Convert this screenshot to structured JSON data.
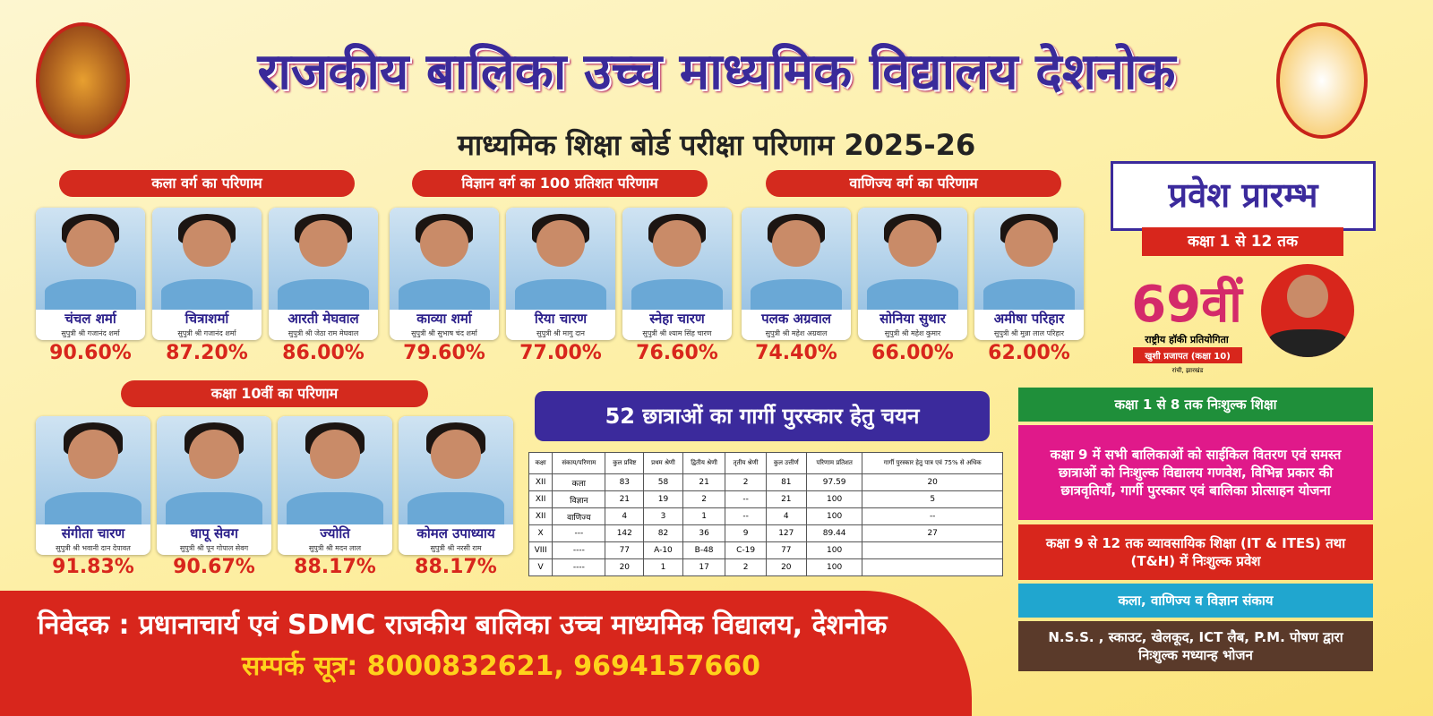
{
  "header": {
    "title": "राजकीय बालिका उच्च माध्यमिक विद्यालय देशनोक",
    "subtitle": "माध्यमिक शिक्षा बोर्ड परीक्षा परिणाम 2025-26"
  },
  "sections": [
    {
      "heading": "कला वर्ग का  परिणाम",
      "students": [
        {
          "name": "चंचल शर्मा",
          "parent": "सुपुत्री श्री गजानंद शर्मा",
          "percent": "90.60%"
        },
        {
          "name": "चित्राशर्मा",
          "parent": "सुपुत्री श्री गजानंद शर्मा",
          "percent": "87.20%"
        },
        {
          "name": "आरती मेघवाल",
          "parent": "सुपुत्री श्री जेठा राम मेघवाल",
          "percent": "86.00%"
        }
      ]
    },
    {
      "heading": "विज्ञान वर्ग का 100 प्रतिशत परिणाम",
      "students": [
        {
          "name": "काव्या शर्मा",
          "parent": "सुपुत्री श्री सुभाष चंद शर्मा",
          "percent": "79.60%"
        },
        {
          "name": "रिया चारण",
          "parent": "सुपुत्री श्री मागु दान",
          "percent": "77.00%"
        },
        {
          "name": "स्नेहा चारण",
          "parent": "सुपुत्री श्री श्याम सिंह चारण",
          "percent": "76.60%"
        }
      ]
    },
    {
      "heading": "वाणिज्य वर्ग का परिणाम",
      "students": [
        {
          "name": "पलक अग्रवाल",
          "parent": "सुपुत्री श्री महेश अग्रवाल",
          "percent": "74.40%"
        },
        {
          "name": "सोनिया सुथार",
          "parent": "सुपुत्री श्री महेश कुमार",
          "percent": "66.00%"
        },
        {
          "name": "अमीषा परिहार",
          "parent": "सुपुत्री श्री मुन्ना लाल परिहार",
          "percent": "62.00%"
        }
      ]
    },
    {
      "heading": "कक्षा 10वीं का परिणाम",
      "students": [
        {
          "name": "संगीता चारण",
          "parent": "सुपुत्री श्री भवानी दान देपावत",
          "percent": "91.83%"
        },
        {
          "name": "धापू सेवग",
          "parent": "सुपुत्री श्री पून गोपाल सेवग",
          "percent": "90.67%"
        },
        {
          "name": "ज्योति",
          "parent": "सुपुत्री श्री मदन लाल",
          "percent": "88.17%"
        },
        {
          "name": "कोमल उपाध्याय",
          "parent": "सुपुत्री श्री नरसी राम",
          "percent": "88.17%"
        }
      ]
    }
  ],
  "gargi": {
    "banner": "52 छात्राओं का गार्गी पुरस्कार हेतु चयन",
    "table": {
      "headers": [
        "कक्षा",
        "संकाय/परिणाम",
        "कुल प्रविष्ट",
        "प्रथम श्रेणी",
        "द्वितीय श्रेणी",
        "तृतीय श्रेणी",
        "कुल उत्तीर्ण",
        "परिणाम प्रतिशत",
        "गार्गी पुरस्कार हेतु पात्र एवं 75% से अधिक"
      ],
      "rows": [
        [
          "XII",
          "कला",
          "83",
          "58",
          "21",
          "2",
          "81",
          "97.59",
          "20"
        ],
        [
          "XII",
          "विज्ञान",
          "21",
          "19",
          "2",
          "--",
          "21",
          "100",
          "5"
        ],
        [
          "XII",
          "वाणिज्य",
          "4",
          "3",
          "1",
          "--",
          "4",
          "100",
          "--"
        ],
        [
          "X",
          "---",
          "142",
          "82",
          "36",
          "9",
          "127",
          "89.44",
          "27"
        ],
        [
          "VIII",
          "----",
          "77",
          "A-10",
          "B-48",
          "C-19",
          "77",
          "100"
        ],
        [
          "V",
          "----",
          "20",
          "1",
          "17",
          "2",
          "20",
          "100"
        ]
      ]
    }
  },
  "admission": {
    "title": "प्रवेश प्रारम्भ",
    "classes": "कक्षा 1 से 12 तक"
  },
  "achievement": {
    "rank": "69वीं",
    "event": "राष्ट्रीय हॉकी प्रतियोगिता",
    "student": "खुशी प्रजापत (कक्षा 10)",
    "place": "रांची, झारखंड"
  },
  "features": [
    "कक्षा 1 से 8 तक निःशुल्क शिक्षा",
    "कक्षा 9 में सभी बालिकाओं को साईकिल वितरण एवं समस्त छात्राओं को निःशुल्क विद्यालय गणवेश, विभिन्न प्रकार की छात्रवृतियाँ, गार्गी पुरस्कार एवं बालिका प्रोत्साहन योजना",
    "कक्षा 9 से 12 तक व्यावसायिक शिक्षा (IT & ITES) तथा (T&H) में निःशुल्क प्रवेश",
    "कला, वाणिज्य व विज्ञान संकाय",
    "N.S.S. , स्काउट, खेलकूद, ICT लैब, P.M. पोषण द्वारा निःशुल्क मध्यान्ह भोजन"
  ],
  "footer": {
    "appeal": "निवेदक : प्रधानाचार्य एवं SDMC राजकीय बालिका उच्च माध्यमिक विद्यालय, देशनोक",
    "contact": "सम्पर्क सूत्र: 8000832621, 9694157660"
  }
}
